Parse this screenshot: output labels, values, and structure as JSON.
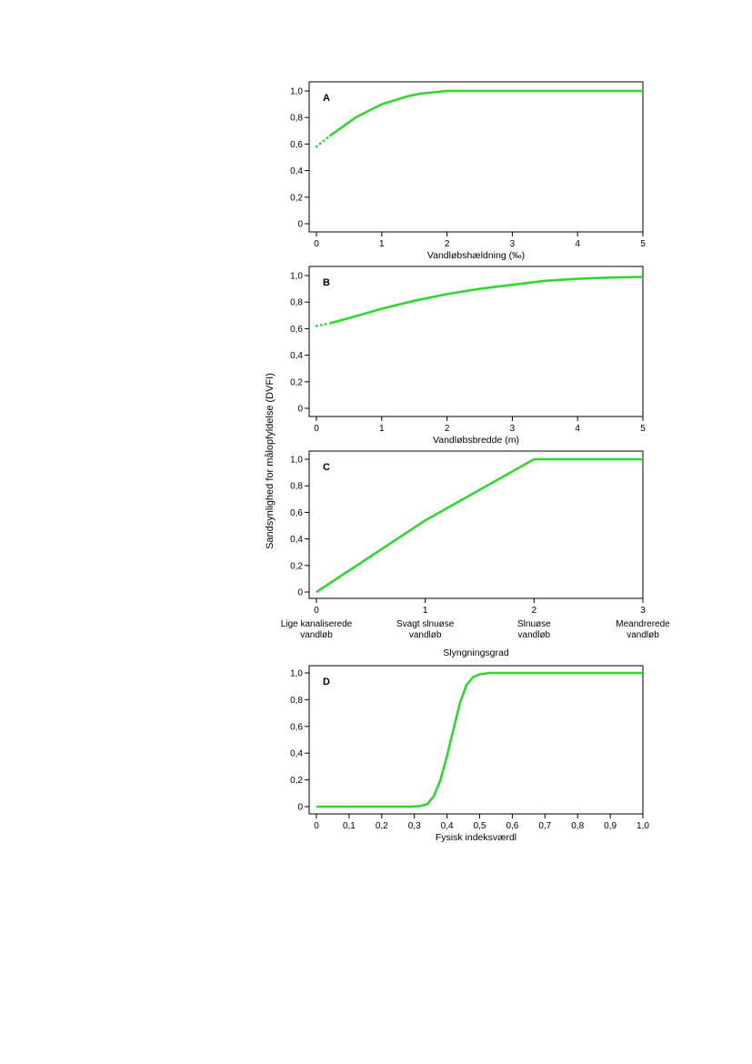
{
  "figure": {
    "ylabel": "Sandsynlighed for målopfyldelse (DVFI)",
    "line_color": "#2ed82e"
  },
  "chart_data": [
    {
      "type": "line",
      "panel_label": "A",
      "xlabel": "Vandløbshældning (‰)",
      "x_ticks": [
        "0",
        "1",
        "2",
        "3",
        "4",
        "5"
      ],
      "y_ticks": [
        "0",
        "0,2",
        "0,4",
        "0,6",
        "0,8",
        "1,0"
      ],
      "xlim": [
        0,
        5
      ],
      "ylim": [
        0,
        1
      ],
      "series": [
        {
          "style": "dotted",
          "x": [
            0,
            0.1,
            0.2
          ],
          "y": [
            0.58,
            0.62,
            0.66
          ]
        },
        {
          "style": "solid",
          "x": [
            0.2,
            0.4,
            0.6,
            0.8,
            1.0,
            1.2,
            1.4,
            1.6,
            1.8,
            2.0,
            3.0,
            4.0,
            5.0
          ],
          "y": [
            0.66,
            0.73,
            0.8,
            0.85,
            0.9,
            0.93,
            0.96,
            0.98,
            0.99,
            1.0,
            1.0,
            1.0,
            1.0
          ]
        }
      ]
    },
    {
      "type": "line",
      "panel_label": "B",
      "xlabel": "Vandløbsbredde (m)",
      "x_ticks": [
        "0",
        "1",
        "2",
        "3",
        "4",
        "5"
      ],
      "y_ticks": [
        "0",
        "0,2",
        "0,4",
        "0,6",
        "0,8",
        "1,0"
      ],
      "xlim": [
        0,
        5
      ],
      "ylim": [
        0,
        1
      ],
      "series": [
        {
          "style": "dotted",
          "x": [
            0,
            0.1,
            0.2
          ],
          "y": [
            0.62,
            0.63,
            0.64
          ]
        },
        {
          "style": "solid",
          "x": [
            0.2,
            0.5,
            1.0,
            1.5,
            2.0,
            2.5,
            3.0,
            3.5,
            4.0,
            4.5,
            5.0
          ],
          "y": [
            0.64,
            0.68,
            0.75,
            0.81,
            0.86,
            0.9,
            0.93,
            0.96,
            0.975,
            0.985,
            0.99
          ]
        }
      ]
    },
    {
      "type": "line",
      "panel_label": "C",
      "xlabel": "Slyngningsgrad",
      "x_ticks": [
        "0",
        "1",
        "2",
        "3"
      ],
      "x_tick_categories": [
        [
          "Lige kanaliserede",
          "vandløb"
        ],
        [
          "Svagt slnuøse",
          "vandløb"
        ],
        [
          "Slnuøse",
          "vandløb"
        ],
        [
          "Meandrerede",
          "vandløb"
        ]
      ],
      "y_ticks": [
        "0",
        "0,2",
        "0,4",
        "0,6",
        "0,8",
        "1,0"
      ],
      "xlim": [
        0,
        3
      ],
      "ylim": [
        0,
        1
      ],
      "series": [
        {
          "style": "solid",
          "x": [
            0,
            1,
            2,
            3
          ],
          "y": [
            0,
            0.54,
            1.0,
            1.0
          ]
        }
      ]
    },
    {
      "type": "line",
      "panel_label": "D",
      "xlabel": "Fysisk indeksværdl",
      "x_ticks": [
        "0",
        "0,1",
        "0,2",
        "0,3",
        "0,4",
        "0,5",
        "0,6",
        "0,7",
        "0,8",
        "0,9",
        "1,0"
      ],
      "y_ticks": [
        "0",
        "0,2",
        "0,4",
        "0,6",
        "0,8",
        "1,0"
      ],
      "xlim": [
        0,
        1
      ],
      "ylim": [
        0,
        1
      ],
      "series": [
        {
          "style": "solid",
          "x": [
            0,
            0.29,
            0.32,
            0.34,
            0.36,
            0.38,
            0.4,
            0.42,
            0.44,
            0.46,
            0.48,
            0.5,
            0.53,
            0.6,
            1.0
          ],
          "y": [
            0,
            0,
            0.005,
            0.02,
            0.08,
            0.2,
            0.38,
            0.58,
            0.78,
            0.91,
            0.97,
            0.99,
            1.0,
            1.0,
            1.0
          ]
        }
      ]
    }
  ]
}
